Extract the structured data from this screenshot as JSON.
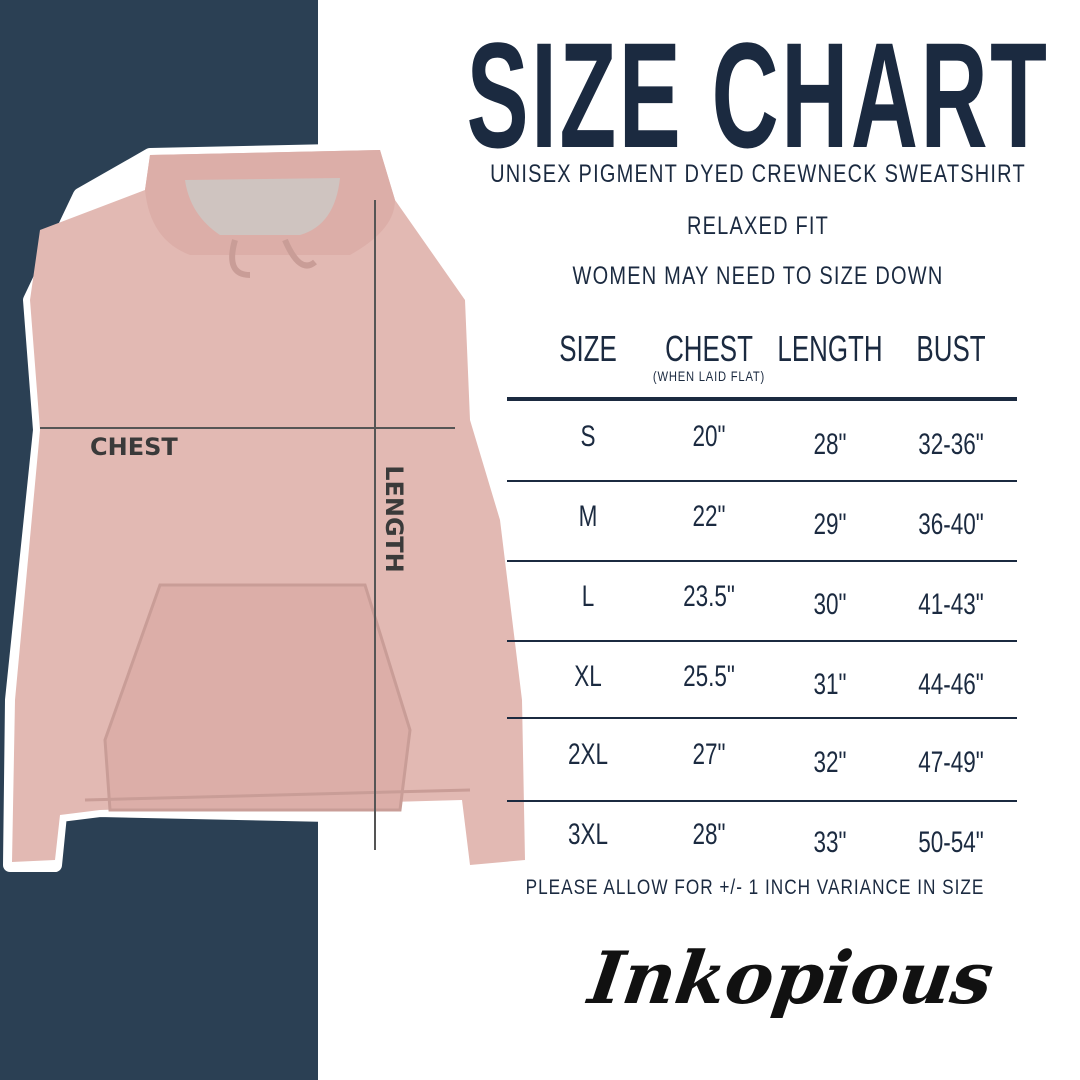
{
  "title": "SIZE CHART",
  "subtitle": "UNISEX PIGMENT DYED CREWNECK SWEATSHIRT",
  "fit": "RELAXED FIT",
  "advice": "WOMEN MAY NEED TO SIZE DOWN",
  "garment_labels": {
    "chest": "CHEST",
    "length": "LENGTH"
  },
  "table": {
    "headers": [
      "SIZE",
      "CHEST",
      "LENGTH",
      "BUST"
    ],
    "chest_note": "(WHEN LAID FLAT)",
    "rows": [
      [
        "S",
        "20\"",
        "28\"",
        "32-36\""
      ],
      [
        "M",
        "22\"",
        "29\"",
        "36-40\""
      ],
      [
        "L",
        "23.5\"",
        "30\"",
        "41-43\""
      ],
      [
        "XL",
        "25.5\"",
        "31\"",
        "44-46\""
      ],
      [
        "2XL",
        "27\"",
        "32\"",
        "47-49\""
      ],
      [
        "3XL",
        "28\"",
        "33\"",
        "50-54\""
      ]
    ]
  },
  "note": "PLEASE ALLOW FOR +/- 1 INCH VARIANCE IN SIZE",
  "brand": "Inkopious",
  "colors": {
    "navy": "#1b2a40",
    "panel": "#2b4054",
    "hoodie": "#e2b9b3"
  }
}
